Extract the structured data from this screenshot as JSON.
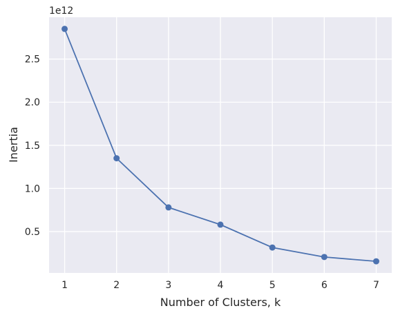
{
  "chart_data": {
    "type": "line",
    "title": "",
    "xlabel": "Number of Clusters, k",
    "ylabel": "Inertia",
    "offset_text": "1e12",
    "x": [
      1,
      2,
      3,
      4,
      5,
      6,
      7
    ],
    "series": [
      {
        "values": [
          2.85,
          1.35,
          0.78,
          0.58,
          0.315,
          0.205,
          0.155
        ],
        "color": "#4c72b0",
        "marker": "circle"
      }
    ],
    "xlim": [
      0.7,
      7.3
    ],
    "ylim": [
      0.02,
      2.985
    ],
    "xticks": [
      1,
      2,
      3,
      4,
      5,
      6,
      7
    ],
    "xtick_labels": [
      "1",
      "2",
      "3",
      "4",
      "5",
      "6",
      "7"
    ],
    "yticks": [
      0.5,
      1.0,
      1.5,
      2.0,
      2.5
    ],
    "ytick_labels": [
      "0.5",
      "1.0",
      "1.5",
      "2.0",
      "2.5"
    ],
    "grid": true,
    "background": "#eaeaf2",
    "grid_color": "#ffffff"
  }
}
